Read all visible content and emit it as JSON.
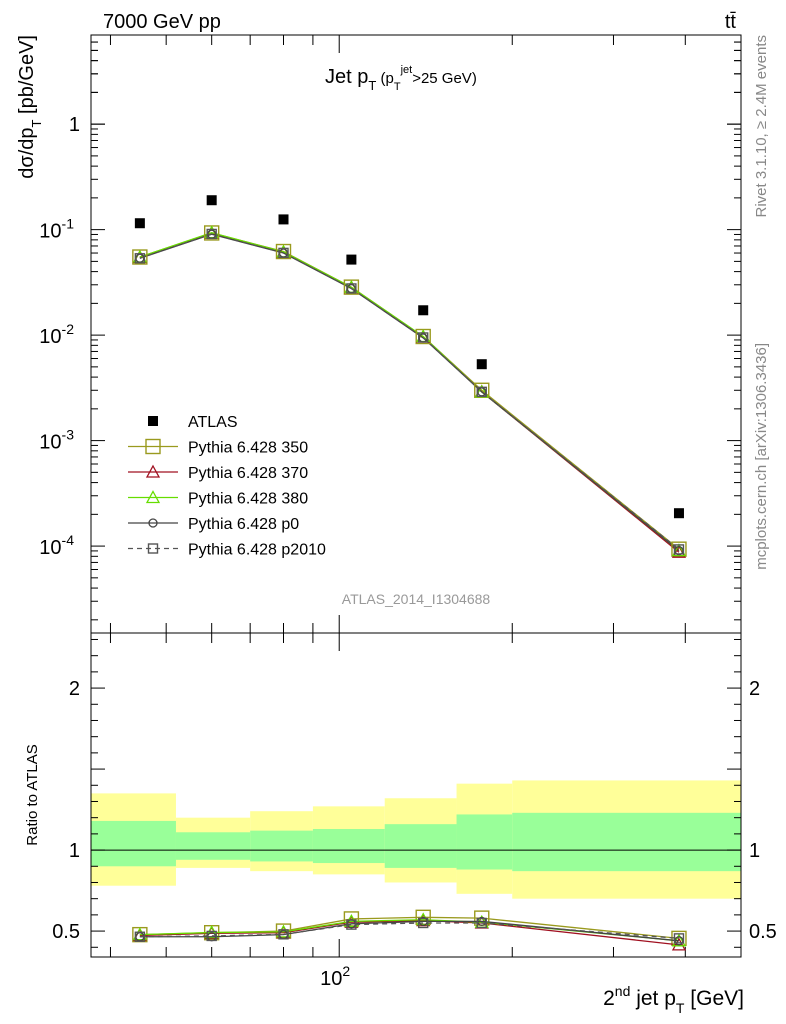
{
  "header": {
    "left": "7000 GeV pp",
    "right": "tt̄"
  },
  "side": {
    "rivet": "Rivet 3.1.10, ≥ 2.4M events",
    "mcplots": "mcplots.cern.ch [arXiv:1306.3436]"
  },
  "chart_data": [
    {
      "type": "scatter",
      "panel": "main",
      "title": "Jet p_T (p_T^jet>25 GeV)",
      "xlabel": "2^nd jet p_T [GeV]",
      "ylabel": "dσ/dp_T [pb/GeV]",
      "xscale": "log",
      "yscale": "log",
      "xlim": [
        37,
        500
      ],
      "ylim": [
        1.5e-05,
        7
      ],
      "ytick_labels": [
        "10^-4",
        "10^-3",
        "10^-2",
        "10^-1",
        "1"
      ],
      "watermark": "ATLAS_2014_I1304688",
      "legend_position": "bottom-left",
      "x": [
        45,
        60,
        80,
        105,
        140,
        177,
        390
      ],
      "series": [
        {
          "name": "ATLAS",
          "color": "#000000",
          "marker": "filled-square",
          "values": [
            0.115,
            0.19,
            0.125,
            0.052,
            0.0172,
            0.0053,
            0.000205
          ]
        },
        {
          "name": "Pythia 6.428 350",
          "color": "#9a9a1e",
          "marker": "open-square",
          "values": [
            0.055,
            0.093,
            0.062,
            0.0285,
            0.0097,
            0.003,
            9.35e-05
          ]
        },
        {
          "name": "Pythia 6.428 370",
          "color": "#a01020",
          "marker": "open-triangle",
          "values": [
            0.0545,
            0.0925,
            0.061,
            0.0282,
            0.0096,
            0.0029,
            8.75e-05
          ]
        },
        {
          "name": "Pythia 6.428 380",
          "color": "#66dd00",
          "marker": "open-triangle",
          "values": [
            0.055,
            0.0935,
            0.0615,
            0.0284,
            0.0097,
            0.0029,
            9.05e-05
          ]
        },
        {
          "name": "Pythia 6.428 p0",
          "color": "#444444",
          "marker": "open-circle",
          "values": [
            0.0535,
            0.0905,
            0.06,
            0.0276,
            0.0094,
            0.0029,
            9.05e-05
          ]
        },
        {
          "name": "Pythia 6.428 p2010",
          "color": "#555555",
          "marker": "open-square-dashed",
          "values": [
            0.0535,
            0.091,
            0.0602,
            0.0277,
            0.0095,
            0.0029,
            9.3e-05
          ]
        }
      ]
    },
    {
      "type": "line",
      "panel": "ratio",
      "ylabel": "Ratio to ATLAS",
      "xlabel": "2^nd jet p_T [GeV]",
      "xscale": "log",
      "xlim": [
        37,
        500
      ],
      "ylim": [
        0.34,
        2.34
      ],
      "yticks": [
        0.5,
        1,
        2
      ],
      "ytick_labels": [
        "0.5",
        "1",
        "2"
      ],
      "xtick_labels": [
        "10^2"
      ],
      "bin_edges": [
        37,
        52,
        70,
        90,
        120,
        160,
        200,
        500
      ],
      "band_inner": {
        "color": "#99ff99",
        "low": [
          0.9,
          0.94,
          0.93,
          0.92,
          0.89,
          0.88,
          0.87
        ],
        "high": [
          1.18,
          1.11,
          1.12,
          1.13,
          1.16,
          1.22,
          1.23
        ]
      },
      "band_outer": {
        "color": "#ffff99",
        "low": [
          0.78,
          0.89,
          0.87,
          0.85,
          0.8,
          0.73,
          0.7
        ],
        "high": [
          1.35,
          1.2,
          1.24,
          1.27,
          1.32,
          1.41,
          1.43
        ]
      },
      "x": [
        45,
        60,
        80,
        105,
        140,
        177,
        390
      ],
      "series": [
        {
          "name": "Pythia 6.428 350",
          "values": [
            0.478,
            0.49,
            0.5,
            0.575,
            0.585,
            0.58,
            0.455
          ]
        },
        {
          "name": "Pythia 6.428 370",
          "values": [
            0.473,
            0.486,
            0.49,
            0.555,
            0.565,
            0.55,
            0.415
          ]
        },
        {
          "name": "Pythia 6.428 380",
          "values": [
            0.478,
            0.491,
            0.495,
            0.56,
            0.57,
            0.555,
            0.44
          ]
        },
        {
          "name": "Pythia 6.428 p0",
          "values": [
            0.465,
            0.465,
            0.478,
            0.545,
            0.56,
            0.56,
            0.44
          ]
        },
        {
          "name": "Pythia 6.428 p2010",
          "values": [
            0.465,
            0.47,
            0.48,
            0.54,
            0.55,
            0.55,
            0.455
          ]
        }
      ]
    }
  ]
}
